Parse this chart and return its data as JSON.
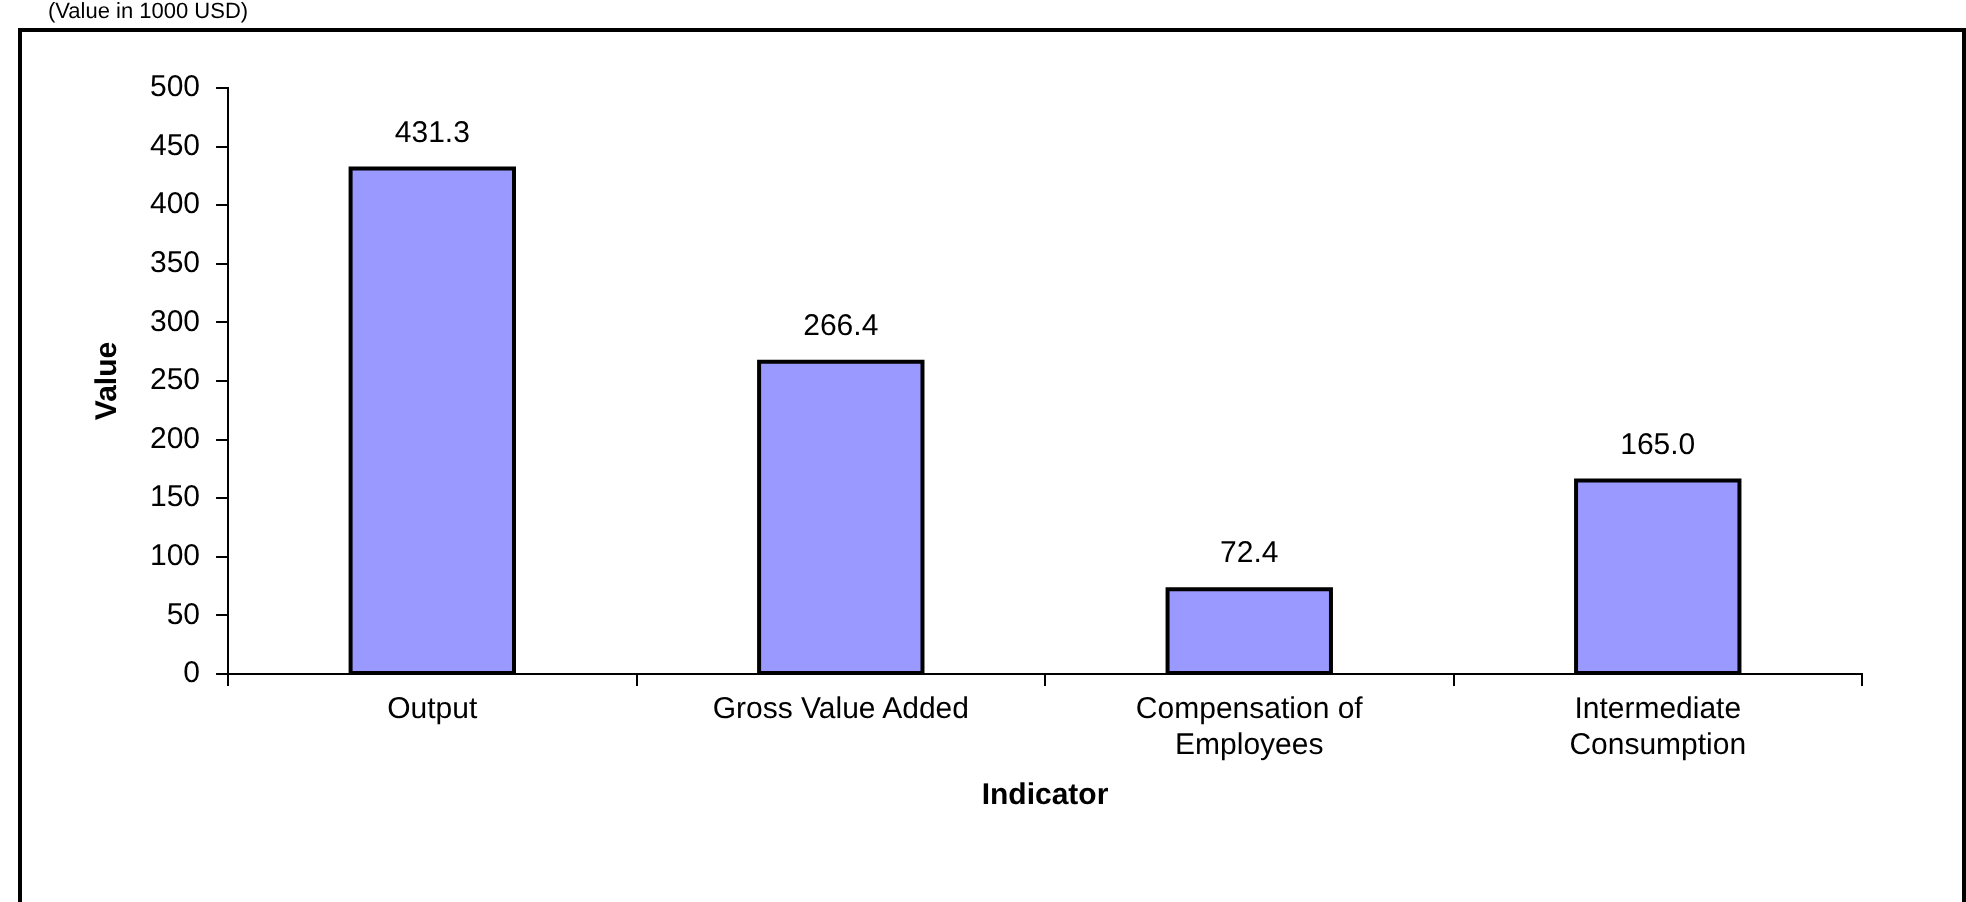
{
  "chart_data": {
    "type": "bar",
    "subtitle": "(Value in 1000 USD)",
    "xlabel": "Indicator",
    "ylabel": "Value",
    "categories": [
      "Output",
      "Gross Value Added",
      "Compensation of Employees",
      "Intermediate Consumption"
    ],
    "values": [
      431.3,
      266.4,
      72.4,
      165.0
    ],
    "color": "#9999ff",
    "value_labels": [
      "431.3",
      "266.4",
      "72.4",
      "165.0"
    ],
    "ylim": [
      0,
      500
    ],
    "yticks": [
      0,
      50,
      100,
      150,
      200,
      250,
      300,
      350,
      400,
      450,
      500
    ],
    "grid": false,
    "legend": false
  }
}
